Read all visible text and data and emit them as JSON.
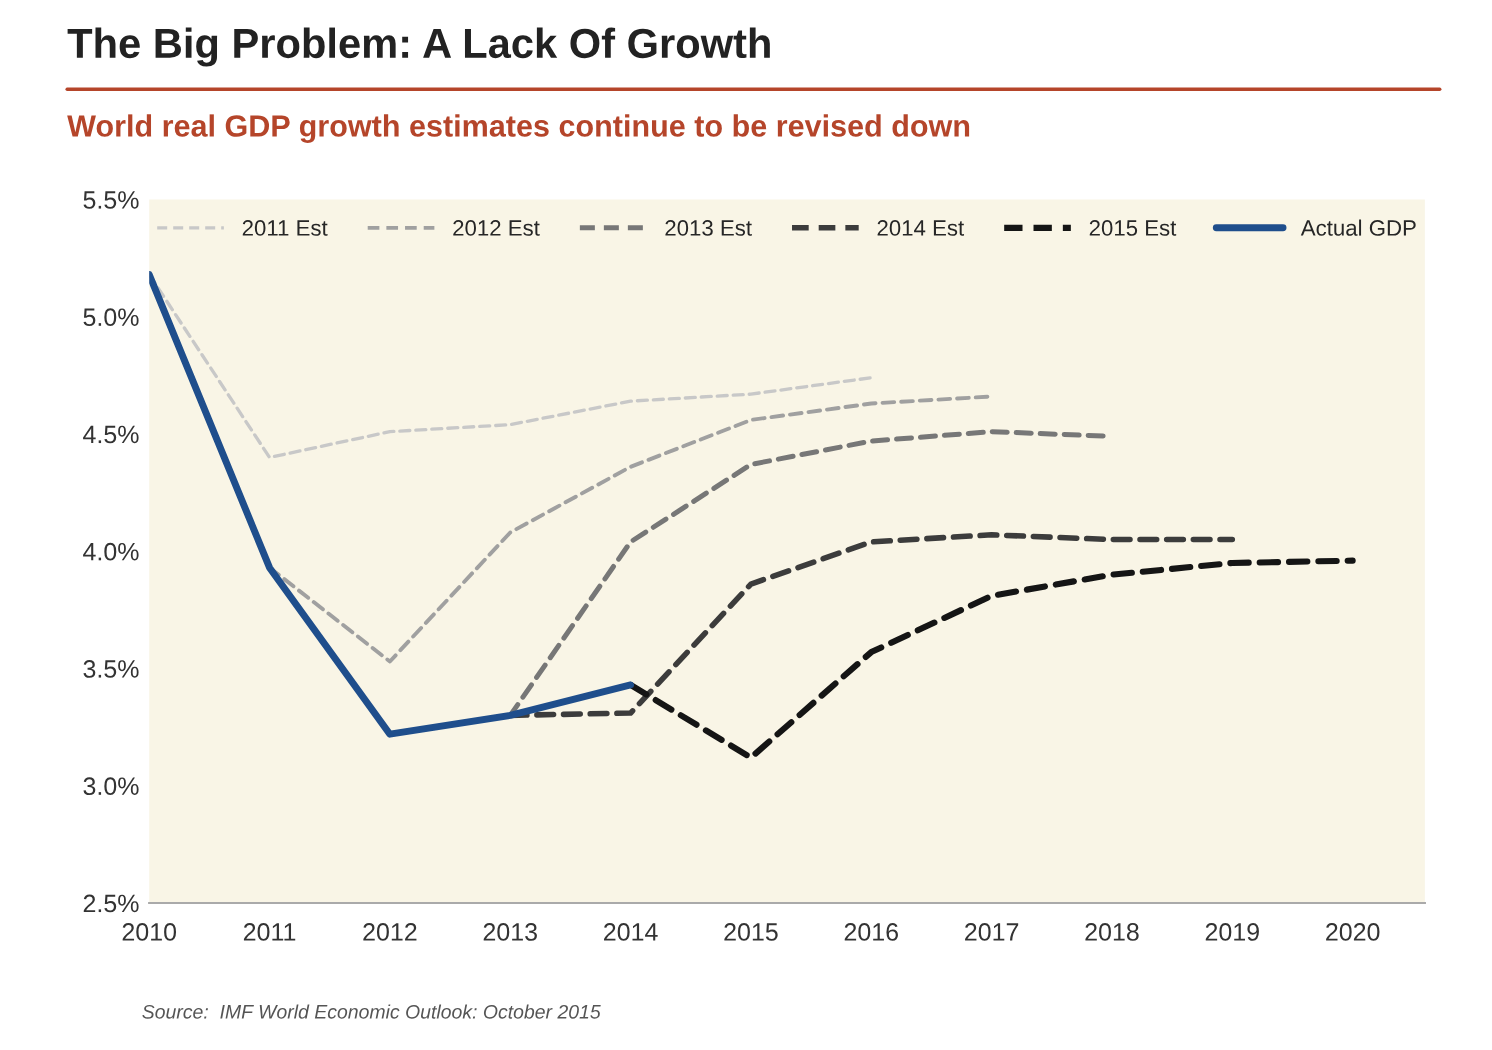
{
  "chart_data": {
    "type": "line",
    "title": "The Big Problem: A Lack Of Growth",
    "subtitle": "World real GDP growth estimates continue to be revised down",
    "xlim": [
      2010,
      2020.6
    ],
    "xticks": [
      2010,
      2011,
      2012,
      2013,
      2014,
      2015,
      2016,
      2017,
      2018,
      2019,
      2020
    ],
    "ylim": [
      2.5,
      5.5
    ],
    "yticks": [
      {
        "value": 2.5,
        "label": "2.5%"
      },
      {
        "value": 3.0,
        "label": "3.0%"
      },
      {
        "value": 3.5,
        "label": "3.5%"
      },
      {
        "value": 4.0,
        "label": "4.0%"
      },
      {
        "value": 4.5,
        "label": "4.5%"
      },
      {
        "value": 5.0,
        "label": "5.0%"
      },
      {
        "value": 5.5,
        "label": "5.5%"
      }
    ],
    "grid": false,
    "legend": "top",
    "marker": "none",
    "series": [
      {
        "name": "2011 Est",
        "color": "#c8c8c8",
        "line_style": "dashed",
        "x": [
          2010,
          2011,
          2012,
          2013,
          2014,
          2015,
          2016
        ],
        "values": [
          5.18,
          4.4,
          4.51,
          4.54,
          4.64,
          4.67,
          4.74
        ]
      },
      {
        "name": "2012 Est",
        "color": "#a0a0a0",
        "line_style": "dashed",
        "x": [
          2011,
          2012,
          2013,
          2014,
          2015,
          2016,
          2017
        ],
        "values": [
          3.93,
          3.53,
          4.08,
          4.36,
          4.56,
          4.63,
          4.66
        ]
      },
      {
        "name": "2013 Est",
        "color": "#777777",
        "line_style": "dashed",
        "x": [
          2012,
          2013,
          2014,
          2015,
          2016,
          2017,
          2018
        ],
        "values": [
          3.22,
          3.3,
          4.04,
          4.37,
          4.47,
          4.51,
          4.49
        ]
      },
      {
        "name": "2014 Est",
        "color": "#3c3c3c",
        "line_style": "dashed",
        "x": [
          2013,
          2014,
          2015,
          2016,
          2017,
          2018,
          2019
        ],
        "values": [
          3.3,
          3.31,
          3.86,
          4.04,
          4.07,
          4.05,
          4.05
        ]
      },
      {
        "name": "2015 Est",
        "color": "#151515",
        "line_style": "dashed",
        "x": [
          2014,
          2015,
          2016,
          2017,
          2018,
          2019,
          2020
        ],
        "values": [
          3.43,
          3.12,
          3.57,
          3.81,
          3.9,
          3.95,
          3.96
        ]
      },
      {
        "name": "Actual GDP",
        "color": "#1f4e8c",
        "line_style": "solid",
        "x": [
          2010,
          2011,
          2012,
          2013,
          2014
        ],
        "values": [
          5.18,
          3.93,
          3.22,
          3.3,
          3.43
        ]
      }
    ],
    "annotations": [
      "Source:  IMF World Economic Outlook: October 2015"
    ]
  }
}
